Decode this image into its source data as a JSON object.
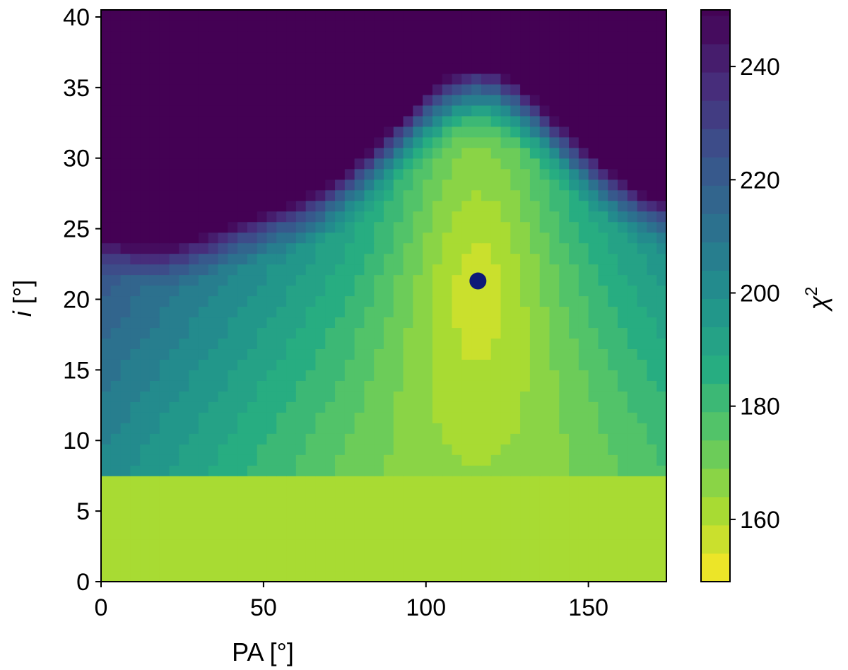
{
  "chart_data": {
    "type": "heatmap",
    "xlabel": "PA [°]",
    "ylabel_var": "i",
    "ylabel_unit": " [°]",
    "colorbar_label_base": "χ",
    "colorbar_label_sup": "2",
    "xlim": [
      0,
      174
    ],
    "ylim": [
      0,
      40.5
    ],
    "x_ticks": [
      0,
      50,
      100,
      150
    ],
    "x_tick_labels": [
      "0",
      "50",
      "100",
      "150"
    ],
    "y_ticks": [
      0,
      5,
      10,
      15,
      20,
      25,
      30,
      35,
      40
    ],
    "y_tick_labels": [
      "0",
      "5",
      "10",
      "15",
      "20",
      "25",
      "30",
      "35",
      "40"
    ],
    "colorbar_range": [
      149,
      250
    ],
    "colorbar_ticks": [
      160,
      180,
      200,
      220,
      240
    ],
    "colorbar_tick_labels": [
      "160",
      "180",
      "200",
      "220",
      "240"
    ],
    "colormap": "viridis_r",
    "levels": [
      149,
      154,
      159,
      164,
      169,
      174,
      179,
      184,
      189,
      194,
      199,
      204,
      209,
      214,
      219,
      224,
      229,
      234,
      239,
      244,
      249
    ],
    "grid": false,
    "best_fit": {
      "PA": 116,
      "i": 21.3,
      "color": "#0d1a78"
    },
    "chi2_surface_model": {
      "min_chi2": 150,
      "ridge_center_pa": 116,
      "ridge_center_i": 21.3,
      "saturation_value": 250
    }
  }
}
